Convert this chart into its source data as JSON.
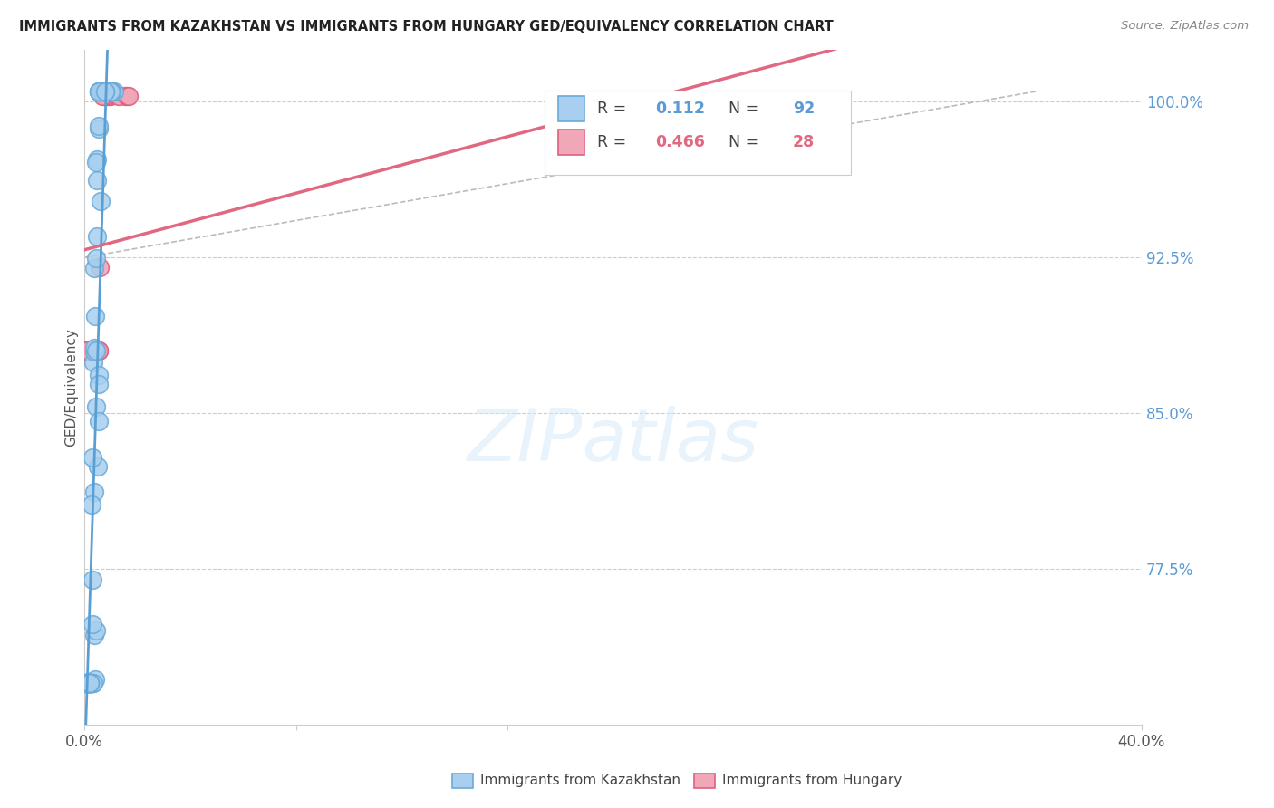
{
  "title": "IMMIGRANTS FROM KAZAKHSTAN VS IMMIGRANTS FROM HUNGARY GED/EQUIVALENCY CORRELATION CHART",
  "source": "Source: ZipAtlas.com",
  "ylabel": "GED/Equivalency",
  "ylabel_right_ticks": [
    "100.0%",
    "92.5%",
    "85.0%",
    "77.5%"
  ],
  "ylabel_right_vals": [
    1.0,
    0.925,
    0.85,
    0.775
  ],
  "R_kaz": 0.112,
  "N_kaz": 92,
  "R_hun": 0.466,
  "N_hun": 28,
  "color_kaz": "#A8CFEF",
  "color_hun": "#F0A8B8",
  "edge_color_kaz": "#6AAAD8",
  "edge_color_hun": "#E06080",
  "line_color_kaz": "#5A9FD4",
  "line_color_hun": "#E06880",
  "legend_label_kaz": "Immigrants from Kazakhstan",
  "legend_label_hun": "Immigrants from Hungary",
  "watermark": "ZIPatlas",
  "x_min": 0.0,
  "x_max": 0.4,
  "y_min": 0.7,
  "y_max": 1.025,
  "kaz_color_text": "#5B9BD5",
  "hun_color_text": "#E06880"
}
